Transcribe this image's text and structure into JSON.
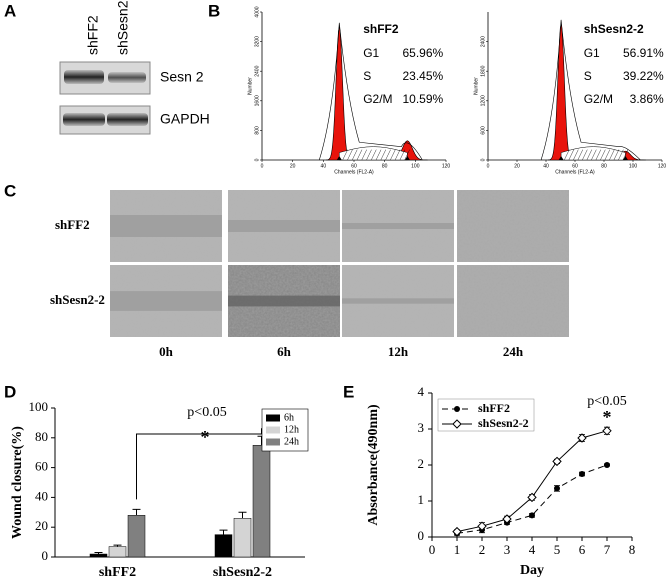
{
  "panel_labels": [
    "A",
    "B",
    "C",
    "D",
    "E"
  ],
  "blot": {
    "lanes": [
      "shFF2",
      "shSesn2-2"
    ],
    "bands": [
      "Sesn 2",
      "GAPDH"
    ]
  },
  "flow": [
    {
      "title": "shFF2",
      "stats": [
        [
          "G1",
          "65.96%"
        ],
        [
          "S",
          "23.45%"
        ],
        [
          "G2/M",
          "10.59%"
        ]
      ],
      "xlabel": "Channels (FL2-A)",
      "ylabel": "Number",
      "xlim": [
        0,
        120
      ],
      "xticks": [
        0,
        20,
        40,
        60,
        80,
        100,
        120
      ],
      "ylim": [
        0,
        4000
      ],
      "yticks": [
        0,
        800,
        1600,
        2400,
        3200,
        4000
      ]
    },
    {
      "title": "shSesn2-2",
      "stats": [
        [
          "G1",
          "56.91%"
        ],
        [
          "S",
          "39.22%"
        ],
        [
          "G2/M",
          "3.86%"
        ]
      ],
      "xlabel": "Channels (FL2-A)",
      "ylabel": "Number",
      "xlim": [
        0,
        120
      ],
      "xticks": [
        0,
        20,
        40,
        60,
        80,
        100,
        120
      ],
      "ylim": [
        0,
        3000
      ],
      "yticks": [
        0,
        600,
        1200,
        1800,
        2400
      ]
    }
  ],
  "wound": {
    "rows": [
      "shFF2",
      "shSesn2-2"
    ],
    "columns": [
      "0h",
      "6h",
      "12h",
      "24h"
    ]
  },
  "chart_data": [
    {
      "type": "bar",
      "ylabel": "Wound closure(%)",
      "categories": [
        "shFF2",
        "shSesn2-2"
      ],
      "series": [
        {
          "name": "6h",
          "color": "#000000",
          "values": [
            2,
            15
          ],
          "errors": [
            1,
            3
          ]
        },
        {
          "name": "12h",
          "color": "#d4d4d4",
          "values": [
            7,
            26
          ],
          "errors": [
            1,
            4
          ]
        },
        {
          "name": "24h",
          "color": "#808080",
          "values": [
            28,
            75
          ],
          "errors": [
            4,
            6
          ]
        }
      ],
      "ylim": [
        0,
        100
      ],
      "yticks": [
        0,
        20,
        40,
        60,
        80,
        100
      ],
      "annotations": [
        "p<0.05",
        "*"
      ]
    },
    {
      "type": "line",
      "xlabel": "Day",
      "ylabel": "Absorbance(490nm)",
      "x": [
        1,
        2,
        3,
        4,
        5,
        6,
        7
      ],
      "series": [
        {
          "name": "shFF2",
          "color": "#000000",
          "line_style": "dashed",
          "marker": "filled-circle",
          "values": [
            0.1,
            0.2,
            0.4,
            0.6,
            1.35,
            1.75,
            2.0
          ],
          "errors": [
            0.05,
            0.08,
            0.05,
            0.05,
            0.08,
            0.05,
            0.03
          ]
        },
        {
          "name": "shSesn2-2",
          "color": "#000000",
          "line_style": "solid",
          "marker": "open-diamond",
          "values": [
            0.15,
            0.3,
            0.5,
            1.1,
            2.1,
            2.75,
            2.95
          ],
          "errors": [
            0.05,
            0.1,
            0.08,
            0.08,
            0.06,
            0.1,
            0.1
          ]
        }
      ],
      "xlim": [
        0,
        8
      ],
      "xticks": [
        0,
        1,
        2,
        3,
        4,
        5,
        6,
        7,
        8
      ],
      "ylim": [
        0,
        4
      ],
      "yticks": [
        0,
        1,
        2,
        3,
        4
      ],
      "annotations": [
        "p<0.05",
        "*"
      ]
    }
  ]
}
